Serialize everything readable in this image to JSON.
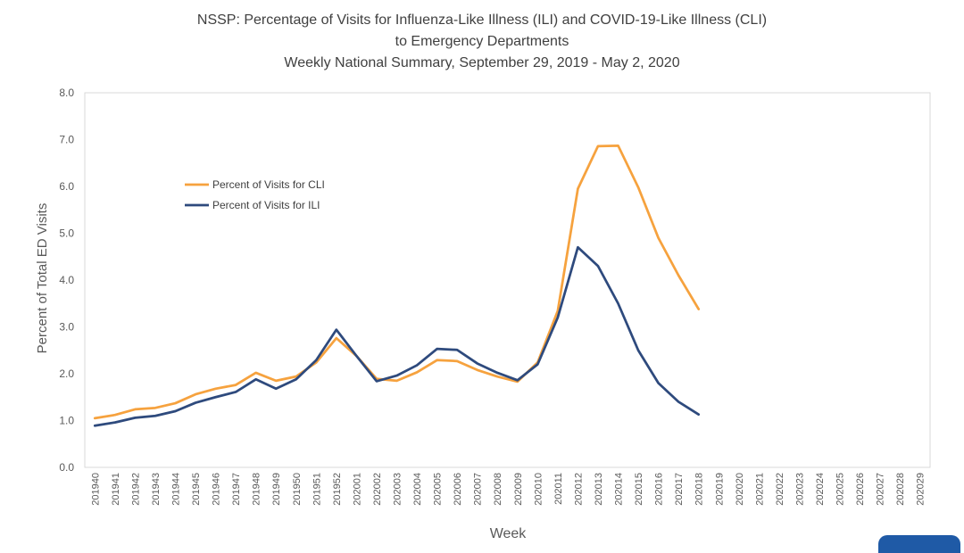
{
  "chart_data": {
    "type": "line",
    "title_lines": [
      "NSSP: Percentage of Visits for Influenza-Like Illness (ILI) and COVID-19-Like Illness (CLI)",
      "to Emergency Departments",
      "Weekly National Summary, September 29, 2019 - May 2, 2020"
    ],
    "xlabel": "Week",
    "ylabel": "Percent of Total ED Visits",
    "ylim": [
      0,
      8
    ],
    "yticks": [
      "0.0",
      "1.0",
      "2.0",
      "3.0",
      "4.0",
      "5.0",
      "6.0",
      "7.0",
      "8.0"
    ],
    "grid": false,
    "legend_position": "upper-left inside",
    "categories": [
      "201940",
      "201941",
      "201942",
      "201943",
      "201944",
      "201945",
      "201946",
      "201947",
      "201948",
      "201949",
      "201950",
      "201951",
      "201952",
      "202001",
      "202002",
      "202003",
      "202004",
      "202005",
      "202006",
      "202007",
      "202008",
      "202009",
      "202010",
      "202011",
      "202012",
      "202013",
      "202014",
      "202015",
      "202016",
      "202017",
      "202018",
      "202019",
      "202020",
      "202021",
      "202022",
      "202023",
      "202024",
      "202025",
      "202026",
      "202027",
      "202028",
      "202029"
    ],
    "series": [
      {
        "name": "Percent of Visits for CLI",
        "color": "#f6a23e",
        "values": [
          1.05,
          1.12,
          1.24,
          1.27,
          1.37,
          1.56,
          1.68,
          1.76,
          2.02,
          1.85,
          1.94,
          2.24,
          2.76,
          2.38,
          1.89,
          1.85,
          2.03,
          2.29,
          2.27,
          2.08,
          1.94,
          1.83,
          2.24,
          3.34,
          5.95,
          6.86,
          6.87,
          5.98,
          4.9,
          4.1,
          3.38,
          null,
          null,
          null,
          null,
          null,
          null,
          null,
          null,
          null,
          null,
          null
        ]
      },
      {
        "name": "Percent of Visits for ILI",
        "color": "#2e4a7d",
        "values": [
          0.89,
          0.96,
          1.06,
          1.1,
          1.2,
          1.38,
          1.5,
          1.61,
          1.88,
          1.68,
          1.88,
          2.29,
          2.94,
          2.38,
          1.84,
          1.96,
          2.18,
          2.53,
          2.51,
          2.22,
          2.02,
          1.86,
          2.2,
          3.2,
          4.7,
          4.3,
          3.5,
          2.5,
          1.8,
          1.4,
          1.13,
          null,
          null,
          null,
          null,
          null,
          null,
          null,
          null,
          null,
          null,
          null
        ]
      }
    ]
  }
}
